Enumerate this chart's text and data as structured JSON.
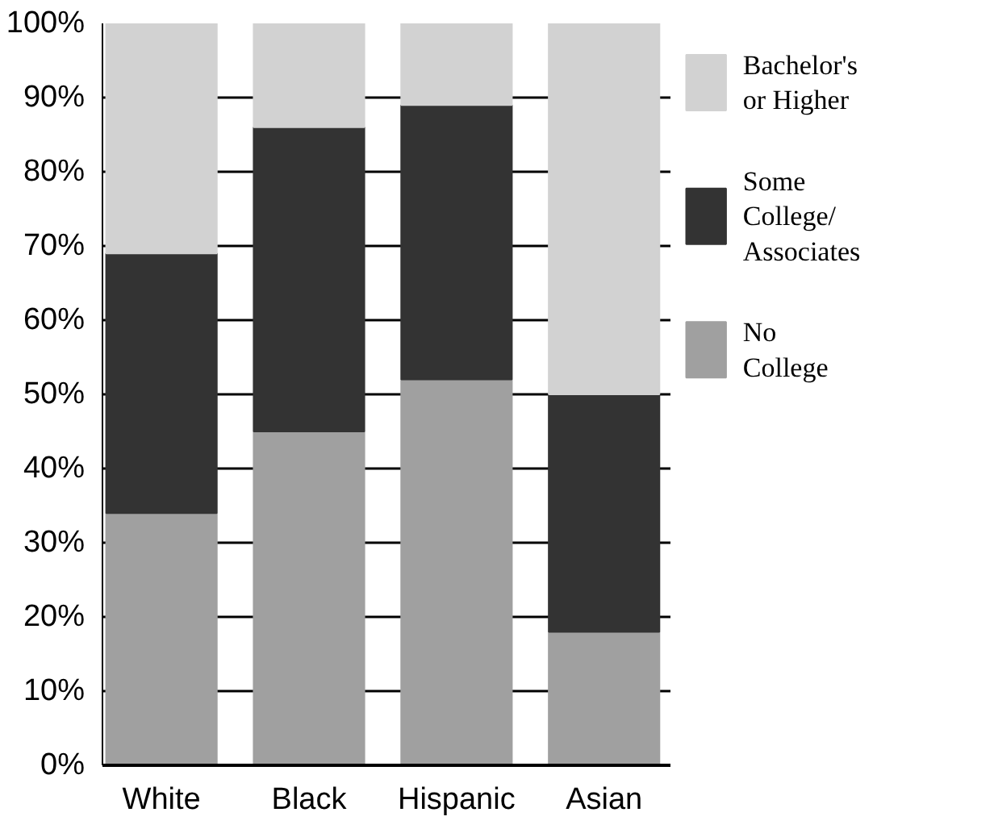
{
  "chart_data": {
    "type": "bar",
    "stacked": true,
    "categories": [
      "White",
      "Black",
      "Hispanic",
      "Asian"
    ],
    "series": [
      {
        "name": "No College",
        "color": "#a0a0a0",
        "values": [
          34,
          45,
          52,
          18
        ]
      },
      {
        "name": "Some College/Associates",
        "color": "#333333",
        "values": [
          35,
          41,
          37,
          32
        ]
      },
      {
        "name": "Bachelor's or Higher",
        "color": "#d2d2d2",
        "values": [
          31,
          14,
          11,
          50
        ]
      }
    ],
    "ylim": [
      0,
      100
    ],
    "yticks": [
      {
        "value": 0,
        "label": "0%"
      },
      {
        "value": 10,
        "label": "10%"
      },
      {
        "value": 20,
        "label": "20%"
      },
      {
        "value": 30,
        "label": "30%"
      },
      {
        "value": 40,
        "label": "40%"
      },
      {
        "value": 50,
        "label": "50%"
      },
      {
        "value": 60,
        "label": "60%"
      },
      {
        "value": 70,
        "label": "70%"
      },
      {
        "value": 80,
        "label": "80%"
      },
      {
        "value": 90,
        "label": "90%"
      },
      {
        "value": 100,
        "label": "100%"
      }
    ],
    "grid": "y",
    "legend": "right"
  }
}
